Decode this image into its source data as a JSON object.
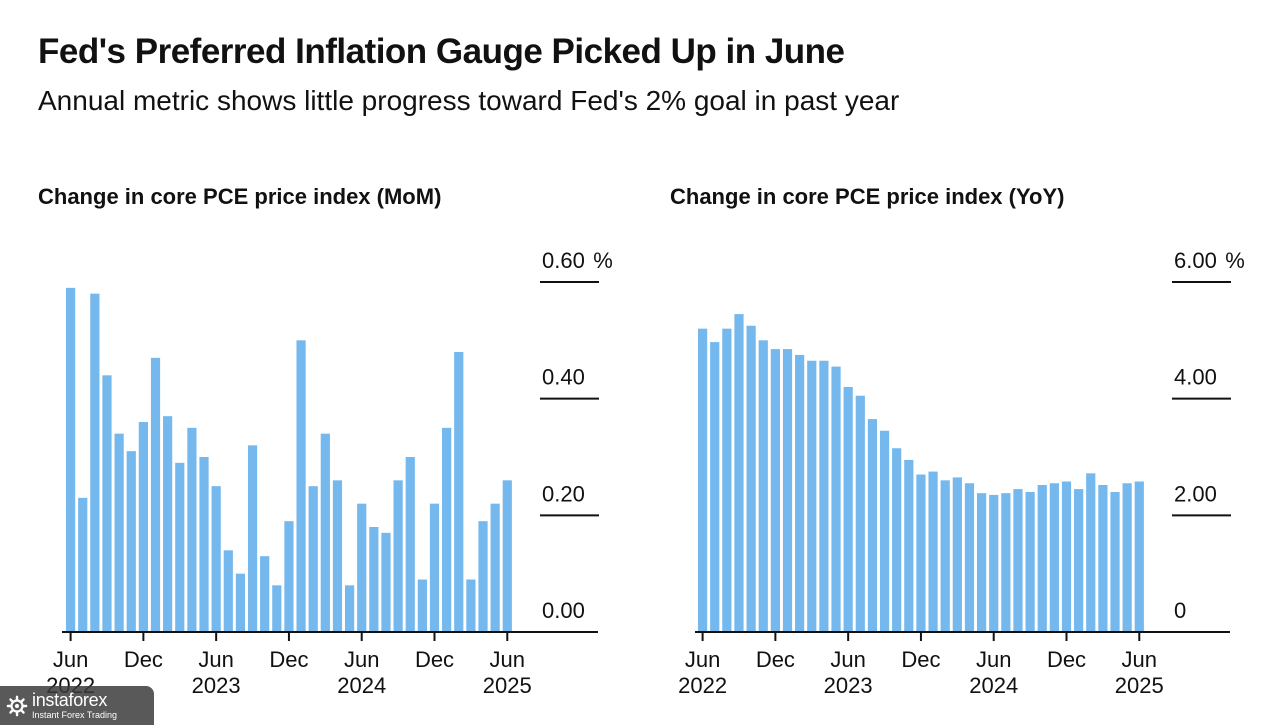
{
  "header": {
    "title": "Fed's Preferred Inflation Gauge Picked Up in June",
    "subtitle": "Annual metric shows little progress toward Fed's 2% goal in past year"
  },
  "colors": {
    "bar": "#74b8ee",
    "axis": "#111111",
    "text": "#111111"
  },
  "watermark": {
    "name": "instaforex",
    "tagline": "Instant Forex Trading",
    "icon": "gear-icon"
  },
  "chart_data": [
    {
      "id": "mom",
      "type": "bar",
      "title": "Change in core PCE price index (MoM)",
      "ylim": [
        0,
        0.6
      ],
      "yticks": [
        {
          "value": 0.6,
          "label": "0.60",
          "unit": "%"
        },
        {
          "value": 0.4,
          "label": "0.40",
          "unit": ""
        },
        {
          "value": 0.2,
          "label": "0.20",
          "unit": ""
        },
        {
          "value": 0.0,
          "label": "0.00",
          "unit": ""
        }
      ],
      "xticks": [
        {
          "index": 0,
          "month": "Jun",
          "year": "2022"
        },
        {
          "index": 6,
          "month": "Dec",
          "year": ""
        },
        {
          "index": 12,
          "month": "Jun",
          "year": "2023"
        },
        {
          "index": 18,
          "month": "Dec",
          "year": ""
        },
        {
          "index": 24,
          "month": "Jun",
          "year": "2024"
        },
        {
          "index": 30,
          "month": "Dec",
          "year": ""
        },
        {
          "index": 36,
          "month": "Jun",
          "year": "2025"
        }
      ],
      "categories": [
        "Jun 2022",
        "Jul 2022",
        "Aug 2022",
        "Sep 2022",
        "Oct 2022",
        "Nov 2022",
        "Dec 2022",
        "Jan 2023",
        "Feb 2023",
        "Mar 2023",
        "Apr 2023",
        "May 2023",
        "Jun 2023",
        "Jul 2023",
        "Aug 2023",
        "Sep 2023",
        "Oct 2023",
        "Nov 2023",
        "Dec 2023",
        "Jan 2024",
        "Feb 2024",
        "Mar 2024",
        "Apr 2024",
        "May 2024",
        "Jun 2024",
        "Jul 2024",
        "Aug 2024",
        "Sep 2024",
        "Oct 2024",
        "Nov 2024",
        "Dec 2024",
        "Jan 2025",
        "Feb 2025",
        "Mar 2025",
        "Apr 2025",
        "May 2025",
        "Jun 2025"
      ],
      "values": [
        0.59,
        0.23,
        0.58,
        0.44,
        0.34,
        0.31,
        0.36,
        0.47,
        0.37,
        0.29,
        0.35,
        0.3,
        0.25,
        0.14,
        0.1,
        0.32,
        0.13,
        0.08,
        0.19,
        0.5,
        0.25,
        0.34,
        0.26,
        0.08,
        0.22,
        0.18,
        0.17,
        0.26,
        0.3,
        0.09,
        0.22,
        0.35,
        0.48,
        0.09,
        0.19,
        0.22,
        0.26
      ]
    },
    {
      "id": "yoy",
      "type": "bar",
      "title": "Change in core PCE price index (YoY)",
      "ylim": [
        0,
        6
      ],
      "yticks": [
        {
          "value": 6,
          "label": "6.00",
          "unit": "%"
        },
        {
          "value": 4,
          "label": "4.00",
          "unit": ""
        },
        {
          "value": 2,
          "label": "2.00",
          "unit": ""
        },
        {
          "value": 0,
          "label": "0",
          "unit": ""
        }
      ],
      "xticks": [
        {
          "index": 0,
          "month": "Jun",
          "year": "2022"
        },
        {
          "index": 6,
          "month": "Dec",
          "year": ""
        },
        {
          "index": 12,
          "month": "Jun",
          "year": "2023"
        },
        {
          "index": 18,
          "month": "Dec",
          "year": ""
        },
        {
          "index": 24,
          "month": "Jun",
          "year": "2024"
        },
        {
          "index": 30,
          "month": "Dec",
          "year": ""
        },
        {
          "index": 36,
          "month": "Jun",
          "year": "2025"
        }
      ],
      "categories": [
        "Jun 2022",
        "Jul 2022",
        "Aug 2022",
        "Sep 2022",
        "Oct 2022",
        "Nov 2022",
        "Dec 2022",
        "Jan 2023",
        "Feb 2023",
        "Mar 2023",
        "Apr 2023",
        "May 2023",
        "Jun 2023",
        "Jul 2023",
        "Aug 2023",
        "Sep 2023",
        "Oct 2023",
        "Nov 2023",
        "Dec 2023",
        "Jan 2024",
        "Feb 2024",
        "Mar 2024",
        "Apr 2024",
        "May 2024",
        "Jun 2024",
        "Jul 2024",
        "Aug 2024",
        "Sep 2024",
        "Oct 2024",
        "Nov 2024",
        "Dec 2024",
        "Jan 2025",
        "Feb 2025",
        "Mar 2025",
        "Apr 2025",
        "May 2025",
        "Jun 2025"
      ],
      "values": [
        5.2,
        4.97,
        5.2,
        5.45,
        5.25,
        5.0,
        4.85,
        4.85,
        4.75,
        4.65,
        4.65,
        4.55,
        4.2,
        4.05,
        3.65,
        3.45,
        3.15,
        2.95,
        2.7,
        2.75,
        2.6,
        2.65,
        2.55,
        2.38,
        2.35,
        2.38,
        2.45,
        2.4,
        2.52,
        2.55,
        2.58,
        2.45,
        2.72,
        2.52,
        2.4,
        2.55,
        2.58
      ]
    }
  ]
}
